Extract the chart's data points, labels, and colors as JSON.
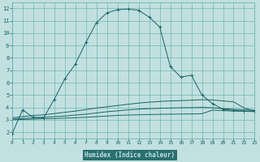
{
  "background_color": "#c2e0e0",
  "plot_bg_color": "#c2e0e0",
  "grid_color": "#5aabab",
  "line_color": "#1a6464",
  "xlabel_bg": "#2a7070",
  "xlabel": "Humidex (Indice chaleur)",
  "xlim": [
    0,
    23
  ],
  "ylim": [
    1.5,
    12.5
  ],
  "xticks": [
    0,
    1,
    2,
    3,
    4,
    5,
    6,
    7,
    8,
    9,
    10,
    11,
    12,
    13,
    14,
    15,
    16,
    17,
    18,
    19,
    20,
    21,
    22,
    23
  ],
  "yticks": [
    2,
    3,
    4,
    5,
    6,
    7,
    8,
    9,
    10,
    11,
    12
  ],
  "line1_x": [
    0,
    1,
    2,
    3,
    4,
    5,
    6,
    7,
    8,
    9,
    10,
    11,
    12,
    13,
    14,
    15,
    16,
    17,
    18,
    19,
    20,
    21,
    22,
    23
  ],
  "line1_y": [
    1.85,
    3.8,
    3.2,
    3.15,
    4.65,
    6.3,
    7.5,
    9.25,
    10.85,
    11.65,
    11.9,
    11.95,
    11.85,
    11.3,
    10.5,
    7.3,
    6.45,
    6.6,
    5.0,
    4.3,
    3.85,
    3.75,
    3.7,
    3.7
  ],
  "line2_x": [
    0,
    1,
    2,
    3,
    4,
    5,
    6,
    7,
    8,
    9,
    10,
    11,
    12,
    13,
    14,
    15,
    16,
    17,
    18,
    19,
    20,
    21,
    22,
    23
  ],
  "line2_y": [
    3.15,
    3.25,
    3.35,
    3.4,
    3.5,
    3.6,
    3.7,
    3.82,
    3.95,
    4.05,
    4.15,
    4.25,
    4.35,
    4.42,
    4.48,
    4.52,
    4.55,
    4.58,
    4.62,
    4.6,
    4.52,
    4.45,
    3.95,
    3.72
  ],
  "line3_x": [
    0,
    1,
    2,
    3,
    4,
    5,
    6,
    7,
    8,
    9,
    10,
    11,
    12,
    13,
    14,
    15,
    16,
    17,
    18,
    19,
    20,
    21,
    22,
    23
  ],
  "line3_y": [
    3.05,
    3.1,
    3.15,
    3.2,
    3.25,
    3.3,
    3.38,
    3.45,
    3.55,
    3.65,
    3.72,
    3.8,
    3.86,
    3.9,
    3.93,
    3.95,
    3.97,
    3.98,
    4.0,
    3.97,
    3.9,
    3.84,
    3.8,
    3.76
  ],
  "line4_x": [
    0,
    1,
    2,
    3,
    4,
    5,
    6,
    7,
    8,
    9,
    10,
    11,
    12,
    13,
    14,
    15,
    16,
    17,
    18,
    19,
    20,
    21,
    22,
    23
  ],
  "line4_y": [
    3.0,
    3.02,
    3.05,
    3.08,
    3.1,
    3.13,
    3.16,
    3.2,
    3.25,
    3.3,
    3.35,
    3.38,
    3.4,
    3.42,
    3.44,
    3.45,
    3.46,
    3.47,
    3.49,
    3.78,
    3.74,
    3.7,
    3.68,
    3.66
  ],
  "marker": "+"
}
